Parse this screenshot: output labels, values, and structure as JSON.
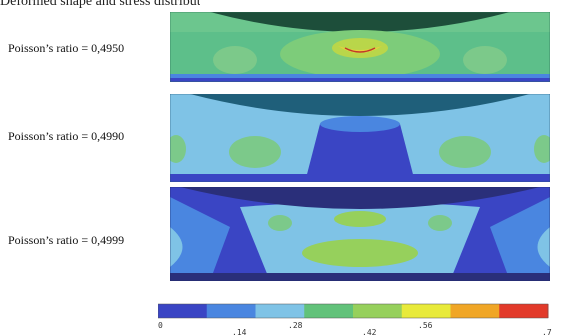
{
  "caption_partial": "Deformed shape and stress distribution",
  "panels": [
    {
      "label": "Poisson’s ratio = 0,4950"
    },
    {
      "label": "Poisson’s ratio = 0,4990"
    },
    {
      "label": "Poisson’s ratio = 0,4999"
    }
  ],
  "colorbar": {
    "colors": [
      "#3a45c4",
      "#4a86e0",
      "#7fc3e6",
      "#62c27a",
      "#96d05c",
      "#e8ea3a",
      "#f0a626",
      "#e23a2a"
    ],
    "ticks_lower": [
      "0",
      ".28",
      ".56"
    ],
    "ticks_upper": [
      ".14",
      ".42",
      ".7"
    ]
  }
}
